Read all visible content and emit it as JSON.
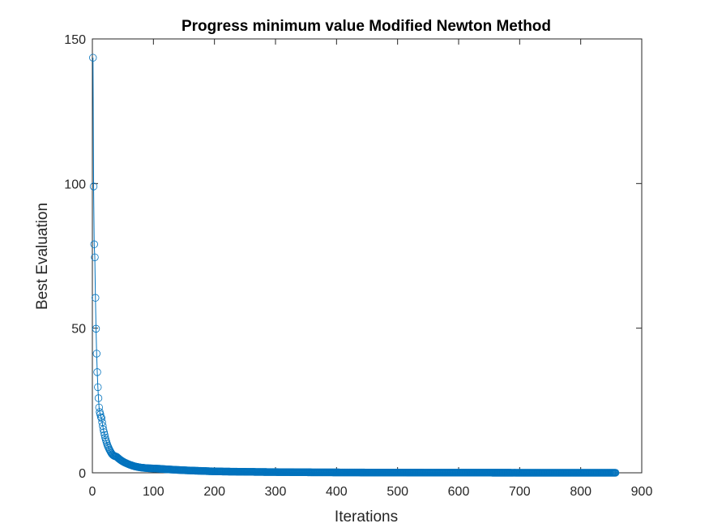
{
  "chart_data": {
    "type": "line",
    "title": "Progress minimum value Modified Newton Method",
    "xlabel": "Iterations",
    "ylabel": "Best Evaluation",
    "xlim": [
      0,
      900
    ],
    "ylim": [
      0,
      150
    ],
    "xticks": [
      0,
      100,
      200,
      300,
      400,
      500,
      600,
      700,
      800,
      900
    ],
    "yticks": [
      0,
      50,
      100,
      150
    ],
    "grid": false,
    "legend": "none",
    "marker": "circle",
    "series_color": "#0072BD",
    "iterations_total": 857,
    "series": [
      {
        "x": [
          1,
          2,
          3,
          4,
          5,
          6,
          7,
          8,
          9,
          10,
          11,
          12,
          13,
          14,
          15,
          16,
          17,
          18,
          19,
          20,
          21,
          22,
          23,
          24,
          25,
          26,
          28,
          30,
          32,
          34,
          36,
          38,
          40,
          45,
          50,
          60,
          70,
          80,
          90,
          100,
          110,
          120,
          140,
          160,
          180,
          200,
          250,
          300,
          350,
          400,
          450,
          500,
          600,
          700,
          800,
          857
        ],
        "y": [
          143.5,
          99,
          79,
          74.5,
          60.5,
          49.8,
          41.2,
          34.8,
          29.6,
          25.8,
          22.6,
          21,
          20.2,
          19.3,
          18.9,
          17.5,
          16.2,
          15,
          14,
          13.1,
          12.2,
          11.4,
          10.7,
          10,
          9.4,
          8.9,
          8,
          7.2,
          6.5,
          6.1,
          5.8,
          5.7,
          5.5,
          4.6,
          3.9,
          2.9,
          2.2,
          1.8,
          1.6,
          1.5,
          1.4,
          1.25,
          1,
          0.8,
          0.65,
          0.5,
          0.35,
          0.25,
          0.18,
          0.14,
          0.1,
          0.08,
          0.05,
          0.03,
          0.02,
          0.01
        ]
      }
    ]
  }
}
